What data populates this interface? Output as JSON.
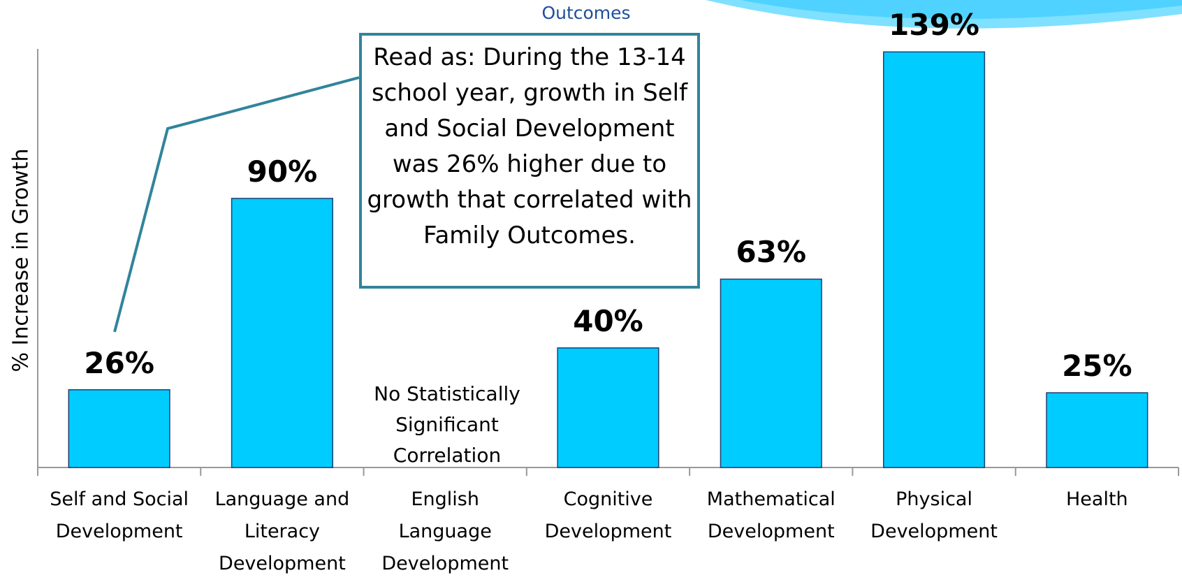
{
  "chart_data": {
    "type": "bar",
    "title": "Outcomes",
    "y_label": "% Increase in Growth",
    "categories": [
      "Self and Social Development",
      "Language and Literacy Development",
      "English Language Development",
      "Cognitive Development",
      "Mathematical Development",
      "Physical Development",
      "Health"
    ],
    "values": [
      26,
      90,
      null,
      40,
      63,
      139,
      25
    ],
    "value_labels": [
      "26%",
      "90%",
      null,
      "40%",
      "63%",
      "139%",
      "25%"
    ],
    "color": "#00ccff",
    "ylim": [
      0,
      140
    ],
    "annotation": "Read as: During the 13-14 school year, growth in Self and Social Development was 26% higher due to growth that correlated with Family Outcomes.",
    "note": "No Statistically Significant Correlation"
  }
}
